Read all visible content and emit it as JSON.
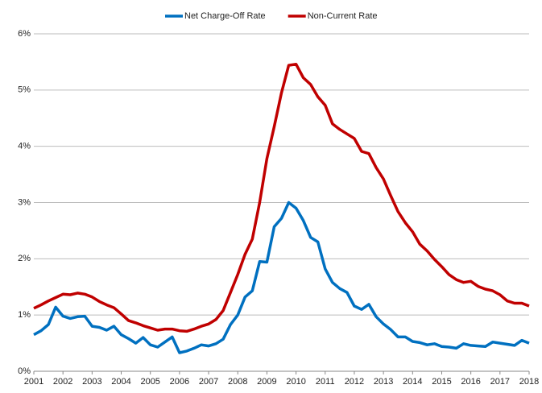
{
  "chart_data": {
    "type": "line",
    "x": [
      2001,
      2001.25,
      2001.5,
      2001.75,
      2002,
      2002.25,
      2002.5,
      2002.75,
      2003,
      2003.25,
      2003.5,
      2003.75,
      2004,
      2004.25,
      2004.5,
      2004.75,
      2005,
      2005.25,
      2005.5,
      2005.75,
      2006,
      2006.25,
      2006.5,
      2006.75,
      2007,
      2007.25,
      2007.5,
      2007.75,
      2008,
      2008.25,
      2008.5,
      2008.75,
      2009,
      2009.25,
      2009.5,
      2009.75,
      2010,
      2010.25,
      2010.5,
      2010.75,
      2011,
      2011.25,
      2011.5,
      2011.75,
      2012,
      2012.25,
      2012.5,
      2012.75,
      2013,
      2013.25,
      2013.5,
      2013.75,
      2014,
      2014.25,
      2014.5,
      2014.75,
      2015,
      2015.25,
      2015.5,
      2015.75,
      2016,
      2016.25,
      2016.5,
      2016.75,
      2017,
      2017.25,
      2017.5,
      2017.75,
      2018
    ],
    "series": [
      {
        "name": "Net Charge-Off Rate",
        "color": "#0070c0",
        "values": [
          0.65,
          0.72,
          0.83,
          1.14,
          0.98,
          0.94,
          0.97,
          0.98,
          0.8,
          0.78,
          0.73,
          0.8,
          0.65,
          0.58,
          0.5,
          0.6,
          0.47,
          0.43,
          0.52,
          0.61,
          0.33,
          0.36,
          0.41,
          0.47,
          0.45,
          0.49,
          0.57,
          0.83,
          1.0,
          1.32,
          1.43,
          1.95,
          1.94,
          2.57,
          2.72,
          3.0,
          2.9,
          2.68,
          2.38,
          2.3,
          1.82,
          1.58,
          1.47,
          1.4,
          1.16,
          1.1,
          1.19,
          0.97,
          0.84,
          0.74,
          0.61,
          0.61,
          0.53,
          0.51,
          0.47,
          0.49,
          0.44,
          0.43,
          0.41,
          0.49,
          0.46,
          0.45,
          0.44,
          0.52,
          0.5,
          0.48,
          0.46,
          0.55,
          0.5
        ]
      },
      {
        "name": "Non-Current Rate",
        "color": "#c00000",
        "values": [
          1.12,
          1.18,
          1.25,
          1.31,
          1.37,
          1.36,
          1.39,
          1.37,
          1.32,
          1.24,
          1.18,
          1.13,
          1.02,
          0.9,
          0.86,
          0.81,
          0.77,
          0.73,
          0.75,
          0.75,
          0.72,
          0.71,
          0.75,
          0.8,
          0.84,
          0.92,
          1.08,
          1.4,
          1.72,
          2.08,
          2.35,
          3.0,
          3.78,
          4.35,
          4.95,
          5.44,
          5.46,
          5.22,
          5.1,
          4.88,
          4.73,
          4.4,
          4.3,
          4.22,
          4.14,
          3.91,
          3.87,
          3.62,
          3.42,
          3.12,
          2.84,
          2.64,
          2.48,
          2.26,
          2.14,
          1.99,
          1.86,
          1.72,
          1.63,
          1.58,
          1.6,
          1.51,
          1.46,
          1.43,
          1.36,
          1.25,
          1.21,
          1.21,
          1.16
        ]
      }
    ],
    "xlim": [
      2001,
      2018
    ],
    "xticks": [
      2001,
      2002,
      2003,
      2004,
      2005,
      2006,
      2007,
      2008,
      2009,
      2010,
      2011,
      2012,
      2013,
      2014,
      2015,
      2016,
      2017,
      2018
    ],
    "ylim": [
      0,
      6
    ],
    "yticks": [
      {
        "value": 0,
        "label": "0%"
      },
      {
        "value": 1,
        "label": "1%"
      },
      {
        "value": 2,
        "label": "2%"
      },
      {
        "value": 3,
        "label": "3%"
      },
      {
        "value": 4,
        "label": "4%"
      },
      {
        "value": 5,
        "label": "5%"
      },
      {
        "value": 6,
        "label": "6%"
      }
    ],
    "grid": true,
    "legend": "top"
  }
}
